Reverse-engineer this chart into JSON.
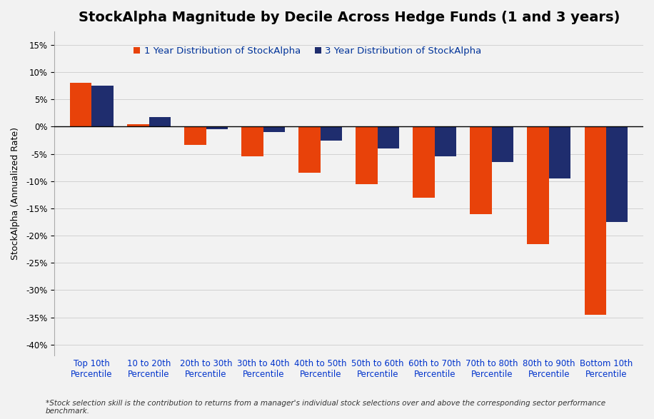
{
  "title": "StockAlpha Magnitude by Decile Across Hedge Funds (1 and 3 years)",
  "xlabel": "",
  "ylabel": "StockAlpha (Annualized Rate)",
  "categories": [
    "Top 10th\nPercentile",
    "10 to 20th\nPercentile",
    "20th to 30th\nPercentile",
    "30th to 40th\nPercentile",
    "40th to 50th\nPercentile",
    "50th to 60th\nPercentile",
    "60th to 70th\nPercentile",
    "70th to 80th\nPercentile",
    "80th to 90th\nPercentile",
    "Bottom 10th\nPercentile"
  ],
  "values_1yr": [
    0.08,
    0.005,
    -0.033,
    -0.055,
    -0.085,
    -0.105,
    -0.13,
    -0.16,
    -0.215,
    -0.345
  ],
  "values_3yr": [
    0.075,
    0.018,
    -0.005,
    -0.01,
    -0.025,
    -0.04,
    -0.055,
    -0.065,
    -0.095,
    -0.175
  ],
  "color_1yr": "#E8420A",
  "color_3yr": "#1F2D6E",
  "legend_1yr": "1 Year Distribution of StockAlpha",
  "legend_3yr": "3 Year Distribution of StockAlpha",
  "legend_text_color": "#003399",
  "ylim": [
    -0.42,
    0.175
  ],
  "yticks": [
    -0.4,
    -0.35,
    -0.3,
    -0.25,
    -0.2,
    -0.15,
    -0.1,
    -0.05,
    0.0,
    0.05,
    0.1,
    0.15
  ],
  "footnote": "*Stock selection skill is the contribution to returns from a manager's individual stock selections over and above the corresponding sector performance\nbenchmark.",
  "background_color": "#F2F2F2",
  "bar_width": 0.38,
  "title_fontsize": 14,
  "ylabel_fontsize": 9,
  "tick_fontsize": 8.5,
  "xtick_color": "#0033CC",
  "ytick_color": "#000000",
  "legend_fontsize": 9.5,
  "spine_color": "#AAAAAA",
  "footnote_color": "#333333"
}
